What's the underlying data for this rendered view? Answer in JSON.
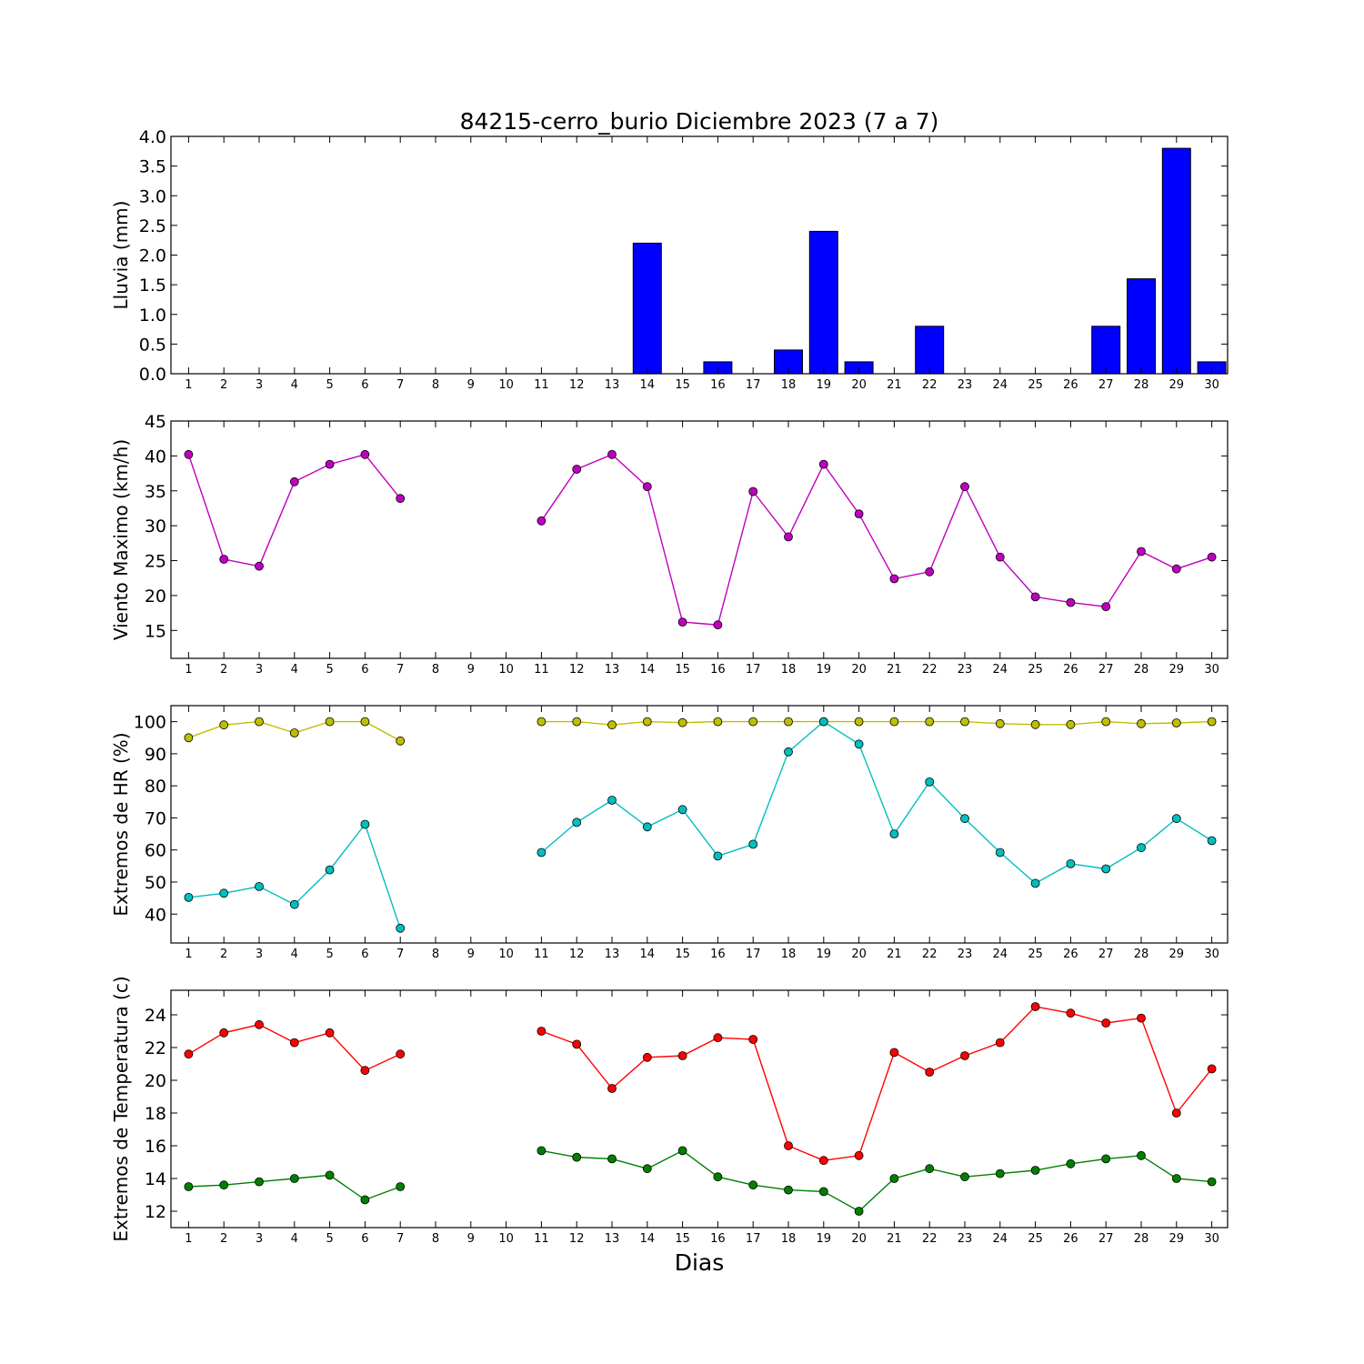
{
  "title": "84215-cerro_burio Diciembre 2023  (7 a 7)",
  "xlabel": "Dias",
  "days": [
    "1",
    "2",
    "3",
    "4",
    "5",
    "6",
    "7",
    "8",
    "9",
    "10",
    "11",
    "12",
    "13",
    "14",
    "15",
    "16",
    "17",
    "18",
    "19",
    "20",
    "21",
    "22",
    "23",
    "24",
    "25",
    "26",
    "27",
    "28",
    "29",
    "30"
  ],
  "chart_data": [
    {
      "type": "bar",
      "ylabel": "Lluvia (mm)",
      "ylim": [
        0,
        4.0
      ],
      "yticks": [
        "0.0",
        "0.5",
        "1.0",
        "1.5",
        "2.0",
        "2.5",
        "3.0",
        "3.5",
        "4.0"
      ],
      "color": "#0000ff",
      "series": [
        {
          "values": [
            0,
            0,
            0,
            0,
            0,
            0,
            0,
            0,
            0,
            0,
            0,
            0,
            0,
            2.2,
            0,
            0.2,
            0,
            0.4,
            2.4,
            0.2,
            0,
            0.8,
            0,
            0,
            0,
            0,
            0.8,
            1.6,
            3.8,
            0.2
          ]
        }
      ]
    },
    {
      "type": "line",
      "ylabel": "Viento Maximo (km/h)",
      "ylim": [
        11,
        45
      ],
      "yticks": [
        "15",
        "20",
        "25",
        "30",
        "35",
        "40",
        "45"
      ],
      "series": [
        {
          "color": "#bf00bf",
          "values": [
            40.2,
            25.2,
            24.2,
            36.3,
            38.8,
            40.2,
            33.9,
            null,
            null,
            null,
            30.7,
            38.1,
            40.2,
            35.6,
            16.2,
            15.8,
            34.9,
            28.4,
            38.8,
            31.7,
            22.4,
            23.4,
            35.6,
            25.5,
            19.8,
            19.0,
            18.4,
            26.3,
            23.8,
            25.5
          ]
        }
      ]
    },
    {
      "type": "line",
      "ylabel": "Extremos de HR (%)",
      "ylim": [
        31,
        105
      ],
      "yticks": [
        "40",
        "50",
        "60",
        "70",
        "80",
        "90",
        "100"
      ],
      "series": [
        {
          "color": "#bfbf00",
          "values": [
            95,
            99,
            100,
            96.5,
            100,
            100,
            94,
            null,
            null,
            null,
            100,
            100,
            99,
            100,
            99.7,
            100,
            100,
            100,
            100,
            100,
            100,
            100,
            100,
            99.4,
            99.1,
            99.1,
            100,
            99.4,
            99.6,
            100
          ]
        },
        {
          "color": "#00bfbf",
          "values": [
            45.2,
            46.5,
            48.6,
            43,
            53.8,
            68,
            35.6,
            null,
            null,
            null,
            59.2,
            68.6,
            75.5,
            67.2,
            72.6,
            58.1,
            61.8,
            90.6,
            100,
            93,
            65,
            81.2,
            69.8,
            59.2,
            49.6,
            55.7,
            54.1,
            60.7,
            69.8,
            62.9
          ]
        }
      ]
    },
    {
      "type": "line",
      "ylabel": "Extremos de Temperatura (c)",
      "ylim": [
        11,
        25.5
      ],
      "yticks": [
        "12",
        "14",
        "16",
        "18",
        "20",
        "22",
        "24"
      ],
      "series": [
        {
          "color": "#ff0000",
          "values": [
            21.6,
            22.9,
            23.4,
            22.3,
            22.9,
            20.6,
            21.6,
            null,
            null,
            null,
            23.0,
            22.2,
            19.5,
            21.4,
            21.5,
            22.6,
            22.5,
            16.0,
            15.1,
            15.4,
            21.7,
            20.5,
            21.5,
            22.3,
            24.5,
            24.1,
            23.5,
            23.8,
            18.0,
            20.7
          ]
        },
        {
          "color": "#008000",
          "values": [
            13.5,
            13.6,
            13.8,
            14.0,
            14.2,
            12.7,
            13.5,
            null,
            null,
            null,
            15.7,
            15.3,
            15.2,
            14.6,
            15.7,
            14.1,
            13.6,
            13.3,
            13.2,
            12.0,
            14.0,
            14.6,
            14.1,
            14.3,
            14.5,
            14.9,
            15.2,
            15.4,
            14.0,
            13.8
          ]
        }
      ]
    }
  ]
}
